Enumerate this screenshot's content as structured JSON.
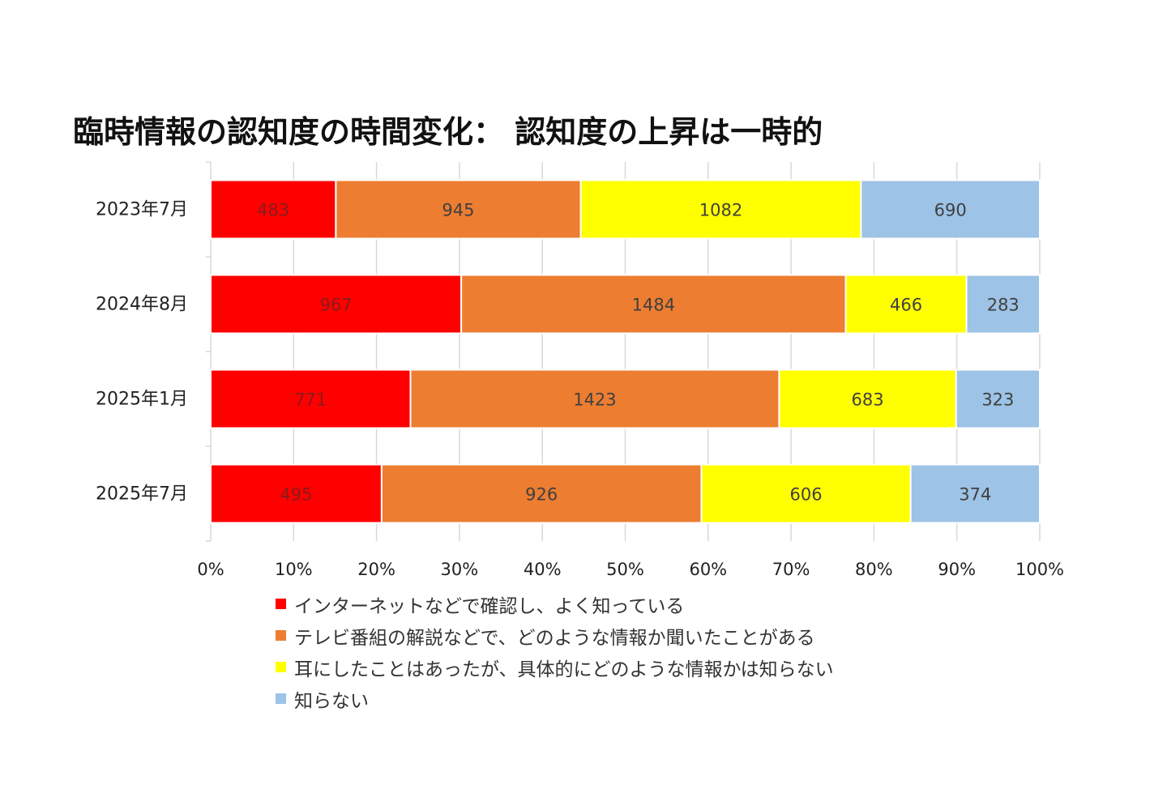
{
  "chart_data": {
    "type": "bar",
    "orientation": "horizontal",
    "stacking": "percent",
    "title": "臨時情報の認知度の時間変化： 認知度の上昇は一時的",
    "categories": [
      "2023年7月",
      "2024年8月",
      "2025年1月",
      "2025年7月"
    ],
    "series": [
      {
        "name": "インターネットなどで確認し、よく知っている",
        "color": "#ff0000",
        "values": [
          483,
          967,
          771,
          495
        ],
        "labels": [
          "483",
          "967",
          "771",
          "495"
        ]
      },
      {
        "name": "テレビ番組の解説などで、どのような情報か聞いたことがある",
        "color": "#ed7d31",
        "values": [
          945,
          1484,
          1423,
          926
        ],
        "labels": [
          "945",
          "1484",
          "1423",
          "926"
        ]
      },
      {
        "name": "耳にしたことはあったが、具体的にどのような情報かは知らない",
        "color": "#ffff00",
        "values": [
          1082,
          466,
          683,
          606
        ],
        "labels": [
          "1082",
          "466",
          "683",
          "606"
        ]
      },
      {
        "name": "知らない",
        "color": "#9dc3e6",
        "values": [
          690,
          283,
          323,
          374
        ],
        "labels": [
          "690",
          "283",
          "323",
          "374"
        ]
      }
    ],
    "x_ticks": [
      "0%",
      "10%",
      "20%",
      "30%",
      "40%",
      "50%",
      "60%",
      "70%",
      "80%",
      "90%",
      "100%"
    ],
    "xlim": [
      0,
      100
    ],
    "grid": true,
    "legend_position": "bottom"
  }
}
